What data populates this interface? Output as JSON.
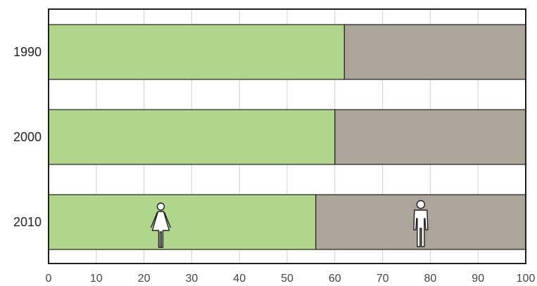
{
  "chart_data": {
    "type": "bar",
    "orientation": "horizontal",
    "stacked": true,
    "categories": [
      "1990",
      "2000",
      "2010"
    ],
    "series": [
      {
        "values": [
          62,
          60,
          56
        ],
        "color": "#b0d68c",
        "icon": "woman-icon"
      },
      {
        "values": [
          38,
          40,
          44
        ],
        "color": "#aca399",
        "icon": "man-icon"
      }
    ],
    "xlim": [
      0,
      100
    ],
    "xticks": [
      0,
      10,
      20,
      30,
      40,
      50,
      60,
      70,
      80,
      90,
      100
    ],
    "grid": true,
    "legend": "none"
  },
  "colors": {
    "grid": "#d0d0d0",
    "frame": "#231f20",
    "bar_edge": "#231f20"
  }
}
